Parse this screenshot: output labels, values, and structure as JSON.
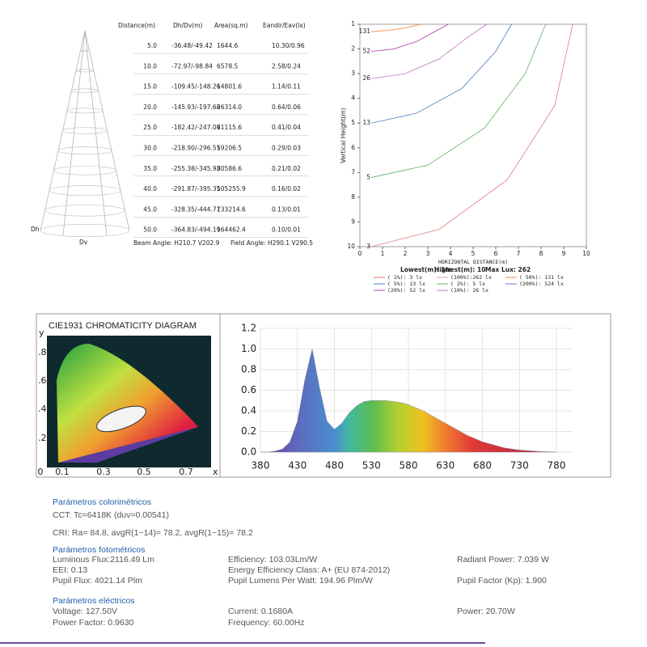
{
  "cone_table": {
    "headers": [
      "Distance(m)",
      "Dh/Dv(m)",
      "Area(sq.m)",
      "Eandir/Eav(lx)"
    ],
    "rows": [
      [
        "5.0",
        "-36.48/-49.42",
        "1644.6",
        "10.30/0.96"
      ],
      [
        "10.0",
        "-72.97/-98.84",
        "6578.5",
        "2.58/0.24"
      ],
      [
        "15.0",
        "-109.45/-148.26",
        "14801.6",
        "1.14/0.11"
      ],
      [
        "20.0",
        "-145.93/-197.68",
        "26314.0",
        "0.64/0.06"
      ],
      [
        "25.0",
        "-182.42/-247.09",
        "41115.6",
        "0.41/0.04"
      ],
      [
        "30.0",
        "-218.90/-296.51",
        "59206.5",
        "0.29/0.03"
      ],
      [
        "35.0",
        "-255.38/-345.93",
        "80586.6",
        "0.21/0.02"
      ],
      [
        "40.0",
        "-291.87/-395.35",
        "105255.9",
        "0.16/0.02"
      ],
      [
        "45.0",
        "-328.35/-444.77",
        "133214.6",
        "0.13/0.01"
      ],
      [
        "50.0",
        "-364.83/-494.19",
        "164462.4",
        "0.10/0.01"
      ]
    ],
    "dh_label": "Dh",
    "dv_label": "Dv",
    "beam_angle": "Beam Angle: H210.7 V202.9",
    "field_angle": "Field Angle: H290.1 V290.5"
  },
  "chart_data": [
    {
      "type": "line",
      "x_label": "HORIZONTAL DISTANCE(m)",
      "y_label": "Vertical Height(m)",
      "xlim": [
        0,
        10
      ],
      "xticks": [
        0,
        1,
        2,
        3,
        4,
        5,
        6,
        7,
        8,
        9,
        10
      ],
      "ylim": [
        1,
        10
      ],
      "yticks": [
        1,
        2,
        3,
        4,
        5,
        6,
        7,
        8,
        9,
        10
      ],
      "y_inverted": true,
      "series": [
        {
          "name": "131",
          "color": "#f0883c",
          "x": [
            0.5,
            1.2,
            2.0,
            2.7
          ],
          "values": [
            1.3,
            1.25,
            1.15,
            1.0
          ]
        },
        {
          "name": "52",
          "color": "#b03cb0",
          "x": [
            0.5,
            1.5,
            2.5,
            3.5,
            3.9
          ],
          "values": [
            2.1,
            2.0,
            1.7,
            1.2,
            1.0
          ]
        },
        {
          "name": "26",
          "color": "#c070c8",
          "x": [
            0.5,
            2.0,
            3.5,
            4.8,
            5.6
          ],
          "values": [
            3.2,
            3.0,
            2.4,
            1.5,
            1.0
          ]
        },
        {
          "name": "13",
          "color": "#4f7fc4",
          "x": [
            0.5,
            2.5,
            4.5,
            6.0,
            6.7
          ],
          "values": [
            5.0,
            4.6,
            3.6,
            2.1,
            1.0
          ]
        },
        {
          "name": "5",
          "color": "#5cb05c",
          "x": [
            0.5,
            3.0,
            5.5,
            7.3,
            8.2
          ],
          "values": [
            7.2,
            6.7,
            5.2,
            3.0,
            1.0
          ]
        },
        {
          "name": "3",
          "color": "#e07a7a",
          "x": [
            0.5,
            3.5,
            6.5,
            8.6,
            9.4
          ],
          "values": [
            10.0,
            9.3,
            7.3,
            4.3,
            1.0
          ]
        }
      ],
      "summary": [
        "Lowest(m): 1m",
        "Highest(m): 10",
        "Max Lux: 262"
      ],
      "legend_entries": [
        {
          "text": "( 1%):   3 lx",
          "color": "#e07a7a"
        },
        {
          "text": "(100%):262 lx",
          "color": "#e0a0a0"
        },
        {
          "text": "( 50%): 131 lx",
          "color": "#f0883c"
        },
        {
          "text": "( 5%):  13 lx",
          "color": "#4f7fc4"
        },
        {
          "text": "( 2%):   5 lx",
          "color": "#5cb05c"
        },
        {
          "text": "(200%): 524 lx",
          "color": "#6080c0"
        },
        {
          "text": "(20%):  52 lx",
          "color": "#b03cb0"
        },
        {
          "text": "(10%):  26 lx",
          "color": "#c070c8"
        }
      ]
    },
    {
      "type": "area",
      "x": [
        380,
        390,
        400,
        410,
        420,
        430,
        440,
        450,
        460,
        470,
        480,
        490,
        500,
        510,
        520,
        530,
        540,
        550,
        560,
        570,
        580,
        590,
        600,
        610,
        620,
        630,
        640,
        650,
        660,
        670,
        680,
        690,
        700,
        710,
        720,
        730,
        740,
        750,
        760,
        770,
        780
      ],
      "values": [
        0,
        0,
        0.01,
        0.03,
        0.1,
        0.3,
        0.7,
        1.0,
        0.62,
        0.3,
        0.22,
        0.28,
        0.38,
        0.45,
        0.49,
        0.5,
        0.5,
        0.5,
        0.49,
        0.48,
        0.46,
        0.43,
        0.4,
        0.36,
        0.32,
        0.28,
        0.24,
        0.2,
        0.16,
        0.13,
        0.1,
        0.08,
        0.06,
        0.04,
        0.03,
        0.02,
        0.015,
        0.01,
        0.005,
        0.003,
        0.002
      ],
      "xlim": [
        380,
        780
      ],
      "xticks": [
        380,
        430,
        480,
        530,
        580,
        630,
        680,
        730,
        780
      ],
      "ylim": [
        0,
        1.2
      ],
      "yticks": [
        {
          "value": 0,
          "label": "0.0"
        },
        0.2,
        0.4,
        0.6,
        0.8,
        {
          "value": 1,
          "label": "1.0"
        },
        1.2
      ],
      "grid": true
    }
  ],
  "cie": {
    "title": "CIE1931 CHROMATICITY DIAGRAM",
    "y_label": "y",
    "x_label": "x",
    "yticks": [
      ".8",
      ".6",
      ".4",
      ".2"
    ],
    "xticks": [
      "0",
      "0.1",
      "0.3",
      "0.5",
      "0.7"
    ]
  },
  "parameters": {
    "colorimetric": {
      "heading": "Parámetros colorimétricos",
      "lines": [
        "CCT: Tc=6418K (duv=0.00541)",
        "CRI: Ra= 84.8, avgR(1~14)= 78.2, avgR(1~15)= 78.2"
      ]
    },
    "photometric": {
      "heading": "Parámetros fotométricos",
      "rows": [
        [
          "Luminous Flux:2116.49 Lm",
          "Efficiency: 103.03Lm/W",
          "Radiant Power: 7.039 W"
        ],
        [
          "EEI: 0.13",
          "Energy Efficiency Class: A+ (EU 874-2012)"
        ],
        [
          "Pupil Flux: 4021.14 Plm",
          "Pupil Lumens Per Watt: 194.96 Plm/W",
          "Pupil Factor (Kp): 1.900"
        ]
      ]
    },
    "electrical": {
      "heading": "Parámetros eléctricos",
      "rows": [
        [
          "Voltage: 127.50V",
          "Current: 0.1680A",
          "Power: 20.70W"
        ],
        [
          "Power Factor: 0.9630",
          "Frequency: 60.00Hz"
        ]
      ]
    }
  }
}
